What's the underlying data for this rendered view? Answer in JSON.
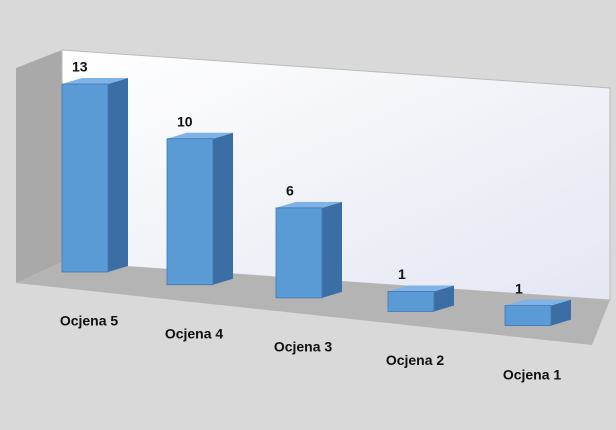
{
  "chart_data": {
    "type": "bar",
    "categories": [
      "Ocjena 5",
      "Ocjena 4",
      "Ocjena 3",
      "Ocjena 2",
      "Ocjena 1"
    ],
    "values": [
      13,
      10,
      6,
      1,
      1
    ],
    "color": "#5b9bd5"
  }
}
